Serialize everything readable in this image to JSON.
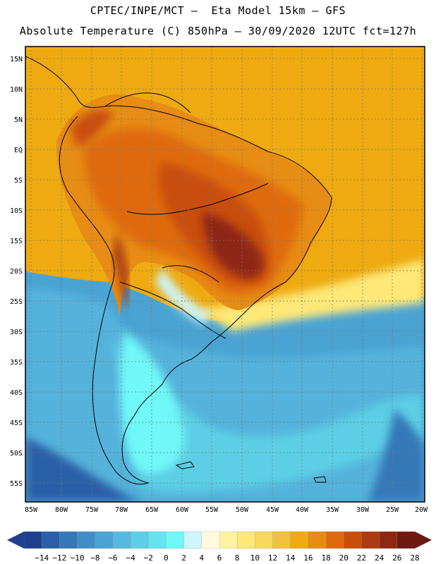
{
  "header": {
    "line1": "CPTEC/INPE/MCT –  Eta Model 15km – GFS",
    "line2": "Absolute Temperature (C) 850hPa – 30/09/2020 12UTC fct=127h"
  },
  "map": {
    "lat_labels": [
      "15N",
      "10N",
      "5N",
      "EQ",
      "5S",
      "10S",
      "15S",
      "20S",
      "25S",
      "30S",
      "35S",
      "40S",
      "45S",
      "50S",
      "55S"
    ],
    "lon_labels": [
      "85W",
      "80W",
      "75W",
      "70W",
      "65W",
      "60W",
      "55W",
      "50W",
      "45W",
      "40W",
      "35W",
      "30W",
      "25W",
      "20W"
    ]
  },
  "colorbar": {
    "labels": [
      "-14",
      "-12",
      "-10",
      "-8",
      "-6",
      "-4",
      "-2",
      "0",
      "2",
      "4",
      "6",
      "8",
      "10",
      "12",
      "14",
      "16",
      "18",
      "20",
      "22",
      "24",
      "26",
      "28"
    ],
    "colors": [
      "#1f3f8f",
      "#2a5ea8",
      "#3478b8",
      "#3f8fc6",
      "#4aa3d2",
      "#58b8de",
      "#5ccfe6",
      "#64e4f0",
      "#70f8f8",
      "#ccf6fb",
      "#fffbe0",
      "#fff3a0",
      "#fde878",
      "#f8d860",
      "#f2c040",
      "#eeaa10",
      "#e78c14",
      "#df6a0c",
      "#c94e08",
      "#ad3a10",
      "#8e2812",
      "#6e1a12"
    ]
  }
}
